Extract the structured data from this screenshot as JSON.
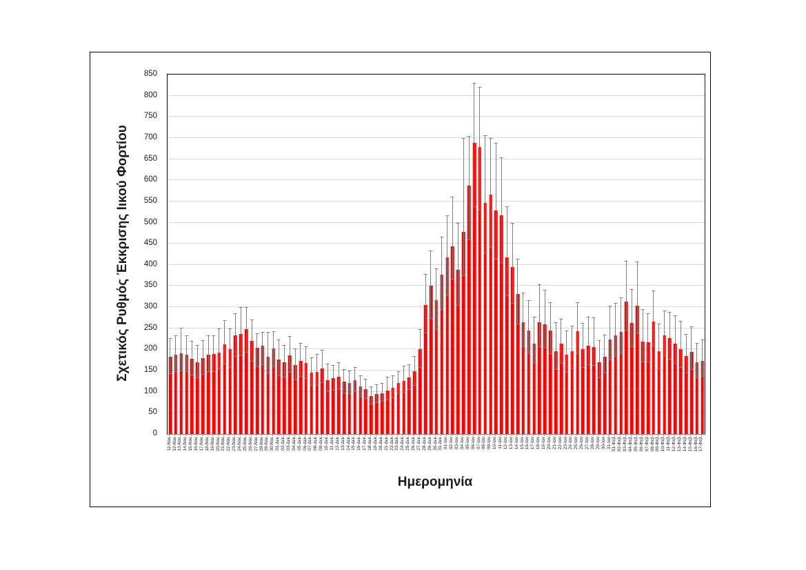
{
  "figure": {
    "y_axis_title": "Σχετικός Ρυθμός Έκκρισης Ιικού Φορτίου",
    "x_axis_title": "Ημερομηνία"
  },
  "chart_data": {
    "type": "bar",
    "title": "",
    "xlabel": "Ημερομηνία",
    "ylabel": "Σχετικός Ρυθμός Έκκρισης Ιικού Φορτίου",
    "ylim": [
      0,
      850
    ],
    "ytick_step": 50,
    "grid": "horizontal-every-50",
    "legend": "none",
    "bar_color": "#FF0000",
    "error_bar_color": "#7F7F7F",
    "gridline_color": "#D9D9D9",
    "error_bars": "upper-and-lower-whiskers-with-caps",
    "categories": [
      "11-Νοε",
      "12-Νοε",
      "13-Νοε",
      "14-Νοε",
      "15-Νοε",
      "16-Νοε",
      "17-Νοε",
      "18-Νοε",
      "19-Νοε",
      "20-Νοε",
      "21-Νοε",
      "22-Νοε",
      "23-Νοε",
      "24-Νοε",
      "25-Νοε",
      "26-Νοε",
      "27-Νοε",
      "28-Νοε",
      "29-Νοε",
      "30-Νοε",
      "01-Δεκ",
      "02-Δεκ",
      "03-Δεκ",
      "04-Δεκ",
      "05-Δεκ",
      "06-Δεκ",
      "07-Δεκ",
      "08-Δεκ",
      "09-Δεκ",
      "10-Δεκ",
      "11-Δεκ",
      "12-Δεκ",
      "13-Δεκ",
      "14-Δεκ",
      "15-Δεκ",
      "16-Δεκ",
      "17-Δεκ",
      "18-Δεκ",
      "19-Δεκ",
      "20-Δεκ",
      "21-Δεκ",
      "22-Δεκ",
      "23-Δεκ",
      "24-Δεκ",
      "25-Δεκ",
      "26-Δεκ",
      "27-Δεκ",
      "28-Δεκ",
      "29-Δεκ",
      "30-Δεκ",
      "31-Δεκ",
      "01-Ιαν",
      "02-Ιαν",
      "03-Ιαν",
      "04-Ιαν",
      "05-Ιαν",
      "06-Ιαν",
      "07-Ιαν",
      "08-Ιαν",
      "09-Ιαν",
      "10-Ιαν",
      "11-Ιαν",
      "12-Ιαν",
      "13-Ιαν",
      "14-Ιαν",
      "15-Ιαν",
      "16-Ιαν",
      "17-Ιαν",
      "18-Ιαν",
      "19-Ιαν",
      "20-Ιαν",
      "21-Ιαν",
      "22-Ιαν",
      "23-Ιαν",
      "24-Ιαν",
      "25-Ιαν",
      "26-Ιαν",
      "27-Ιαν",
      "28-Ιαν",
      "29-Ιαν",
      "30-Ιαν",
      "31-Ιαν",
      "01-Φεβ",
      "02-Φεβ",
      "03-Φεβ",
      "04-Φεβ",
      "05-Φεβ",
      "06-Φεβ",
      "07-Φεβ",
      "08-Φεβ",
      "09-Φεβ",
      "10-Φεβ",
      "11-Φεβ",
      "12-Φεβ",
      "13-Φεβ",
      "14-Φεβ",
      "15-Φεβ",
      "16-Φεβ",
      "17-Φεβ"
    ],
    "values": [
      182,
      188,
      191,
      188,
      178,
      169,
      179,
      188,
      189,
      193,
      212,
      201,
      233,
      236,
      248,
      220,
      204,
      209,
      182,
      202,
      176,
      170,
      186,
      163,
      173,
      168,
      146,
      147,
      155,
      127,
      132,
      136,
      124,
      121,
      128,
      112,
      106,
      90,
      94,
      97,
      102,
      109,
      120,
      126,
      133,
      148,
      200,
      305,
      350,
      316,
      377,
      418,
      443,
      388,
      478,
      587,
      688,
      678,
      546,
      566,
      529,
      518,
      418,
      395,
      332,
      264,
      244,
      213,
      264,
      260,
      244,
      195,
      213,
      187,
      196,
      243,
      200,
      209,
      206,
      169,
      183,
      223,
      233,
      242,
      313,
      263,
      304,
      218,
      217,
      266,
      195,
      234,
      226,
      214,
      200,
      184,
      194,
      169,
      173
    ],
    "error_upper": [
      226,
      233,
      252,
      233,
      221,
      210,
      222,
      233,
      234,
      250,
      270,
      249,
      285,
      300,
      301,
      271,
      239,
      241,
      241,
      243,
      223,
      211,
      231,
      202,
      215,
      208,
      181,
      190,
      199,
      167,
      164,
      169,
      154,
      150,
      159,
      139,
      131,
      112,
      117,
      120,
      136,
      138,
      149,
      162,
      165,
      184,
      248,
      378,
      434,
      392,
      467,
      518,
      561,
      500,
      700,
      705,
      831,
      820,
      706,
      700,
      689,
      654,
      539,
      499,
      414,
      334,
      316,
      278,
      354,
      341,
      311,
      264,
      273,
      245,
      256,
      312,
      263,
      278,
      276,
      222,
      235,
      303,
      310,
      323,
      410,
      342,
      408,
      295,
      286,
      340,
      261,
      292,
      289,
      281,
      267,
      237,
      255,
      215,
      224
    ],
    "error_lower": [
      142,
      147,
      149,
      147,
      139,
      132,
      140,
      147,
      147,
      151,
      165,
      157,
      182,
      184,
      193,
      172,
      159,
      163,
      142,
      158,
      137,
      133,
      145,
      127,
      135,
      131,
      114,
      115,
      121,
      99,
      103,
      106,
      97,
      94,
      100,
      87,
      83,
      70,
      73,
      76,
      80,
      85,
      94,
      98,
      104,
      115,
      156,
      238,
      273,
      246,
      294,
      326,
      365,
      303,
      373,
      458,
      537,
      529,
      426,
      441,
      413,
      404,
      326,
      308,
      259,
      206,
      190,
      166,
      206,
      203,
      190,
      152,
      166,
      146,
      153,
      190,
      156,
      163,
      161,
      132,
      143,
      174,
      182,
      189,
      244,
      205,
      237,
      170,
      169,
      207,
      152,
      183,
      176,
      167,
      156,
      144,
      151,
      132,
      135
    ]
  }
}
